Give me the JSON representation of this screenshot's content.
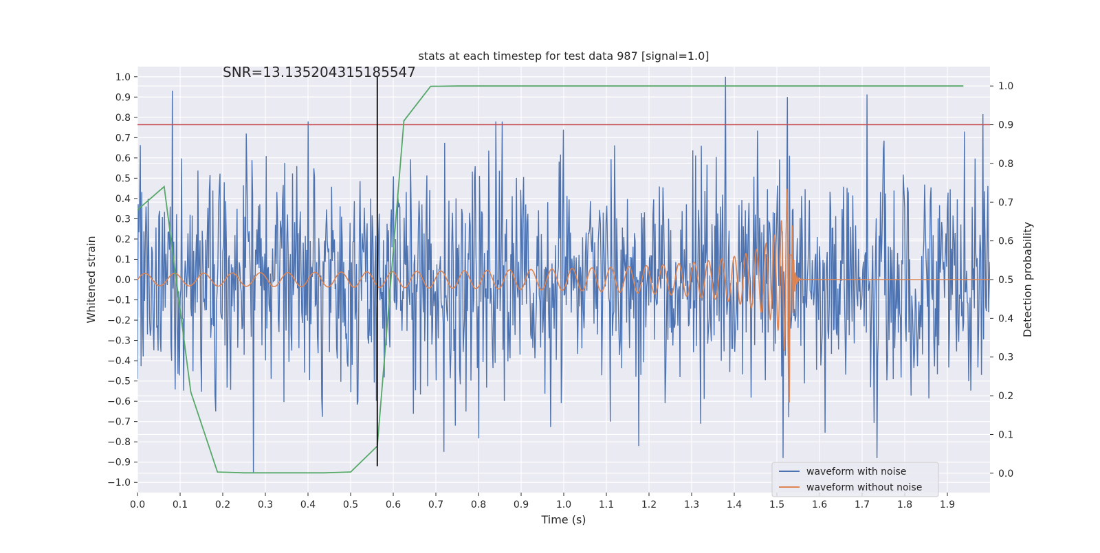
{
  "chart_data": {
    "type": "line",
    "title": "stats at each timestep for test data 987 [signal=1.0]",
    "xlabel": "Time (s)",
    "ylabel_left": "Whitened strain",
    "ylabel_right": "Detection probability",
    "xlim": [
      0.0,
      2.0
    ],
    "ylim_left": [
      -1.05,
      1.05
    ],
    "ylim_right": [
      -0.05,
      1.05
    ],
    "xticks": [
      0.0,
      0.1,
      0.2,
      0.3,
      0.4,
      0.5,
      0.6,
      0.7,
      0.8,
      0.9,
      1.0,
      1.1,
      1.2,
      1.3,
      1.4,
      1.5,
      1.6,
      1.7,
      1.8,
      1.9
    ],
    "xtick_labels": [
      "0.0",
      "0.1",
      "0.2",
      "0.3",
      "0.4",
      "0.5",
      "0.6",
      "0.7",
      "0.8",
      "0.9",
      "1.0",
      "1.1",
      "1.2",
      "1.3",
      "1.4",
      "1.5",
      "1.6",
      "1.7",
      "1.8",
      "1.9"
    ],
    "yticks_left": [
      1.0,
      0.9,
      0.8,
      0.7,
      0.6,
      0.5,
      0.4,
      0.3,
      0.2,
      0.1,
      0.0,
      -0.1,
      -0.2,
      -0.3,
      -0.4,
      -0.5,
      -0.6,
      -0.7,
      -0.8,
      -0.9,
      -1.0
    ],
    "ytick_labels_left": [
      "1.0",
      "0.9",
      "0.8",
      "0.7",
      "0.6",
      "0.5",
      "0.4",
      "0.3",
      "0.2",
      "0.1",
      "0.0",
      "−0.1",
      "−0.2",
      "−0.3",
      "−0.4",
      "−0.5",
      "−0.6",
      "−0.7",
      "−0.8",
      "−0.9",
      "−1.0"
    ],
    "yticks_right": [
      1.0,
      0.9,
      0.8,
      0.7,
      0.6,
      0.5,
      0.4,
      0.3,
      0.2,
      0.1,
      0.0
    ],
    "ytick_labels_right": [
      "1.0",
      "0.9",
      "0.8",
      "0.7",
      "0.6",
      "0.5",
      "0.4",
      "0.3",
      "0.2",
      "0.1",
      "0.0"
    ],
    "annotation": "SNR=13.135204315185547",
    "annotation_position": [
      0.2,
      1.0
    ],
    "threshold_right": 0.9,
    "marker_time": 0.5625,
    "marker_range_left": [
      -0.92,
      1.0
    ],
    "legend": {
      "placement": "lower-right",
      "entries": [
        "waveform with noise",
        "waveform without noise"
      ]
    },
    "series": [
      {
        "name": "waveform with noise",
        "axis": "left",
        "color": "#4c72b0",
        "generated": "noise",
        "t_start": 0.0,
        "t_end": 2.0,
        "count": 1200,
        "amplitude": 0.27,
        "spikes": [
          [
            1.38,
            1.0
          ],
          [
            1.525,
            0.9
          ],
          [
            1.515,
            -0.88
          ],
          [
            0.4,
            0.78
          ],
          [
            0.84,
            0.78
          ],
          [
            0.256,
            0.72
          ],
          [
            1.94,
            0.73
          ],
          [
            0.745,
            -0.72
          ],
          [
            1.11,
            -0.7
          ],
          [
            0.183,
            -0.65
          ]
        ]
      },
      {
        "name": "waveform without noise",
        "axis": "left",
        "color": "#dd8452",
        "generated": "chirp",
        "t_start": 0.0,
        "t_end": 2.0,
        "merger_time": 1.535,
        "peak_amplitude": 0.67,
        "base_amplitude": 0.03
      },
      {
        "name": "detection probability",
        "axis": "right",
        "color": "#55a868",
        "x": [
          0.0,
          0.0625,
          0.125,
          0.1875,
          0.25,
          0.3125,
          0.375,
          0.4375,
          0.5,
          0.5625,
          0.625,
          0.6875,
          0.75,
          0.8125,
          0.875,
          0.9375,
          1.0,
          1.0625,
          1.125,
          1.1875,
          1.25,
          1.3125,
          1.375,
          1.4375,
          1.5,
          1.5625,
          1.625,
          1.6875,
          1.75,
          1.8125,
          1.875,
          1.9375
        ],
        "values": [
          0.68,
          0.74,
          0.21,
          0.003,
          0.001,
          0.001,
          0.001,
          0.001,
          0.003,
          0.07,
          0.91,
          0.999,
          1.0,
          1.0,
          1.0,
          1.0,
          1.0,
          1.0,
          1.0,
          1.0,
          1.0,
          1.0,
          1.0,
          1.0,
          1.0,
          1.0,
          1.0,
          1.0,
          1.0,
          1.0,
          1.0,
          1.0
        ]
      }
    ],
    "threshold_color": "#c44e52",
    "marker_color": "#000000"
  }
}
